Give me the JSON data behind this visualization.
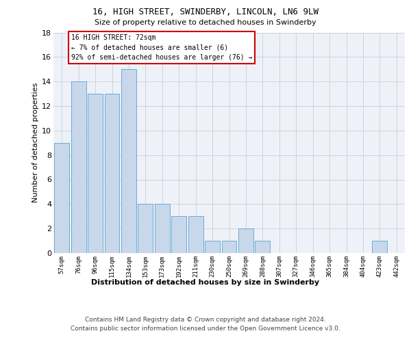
{
  "title1": "16, HIGH STREET, SWINDERBY, LINCOLN, LN6 9LW",
  "title2": "Size of property relative to detached houses in Swinderby",
  "xlabel": "Distribution of detached houses by size in Swinderby",
  "ylabel": "Number of detached properties",
  "categories": [
    "57sqm",
    "76sqm",
    "96sqm",
    "115sqm",
    "134sqm",
    "153sqm",
    "173sqm",
    "192sqm",
    "211sqm",
    "230sqm",
    "250sqm",
    "269sqm",
    "288sqm",
    "307sqm",
    "327sqm",
    "346sqm",
    "365sqm",
    "384sqm",
    "404sqm",
    "423sqm",
    "442sqm"
  ],
  "values": [
    9,
    14,
    13,
    13,
    15,
    4,
    4,
    3,
    3,
    1,
    1,
    2,
    1,
    0,
    0,
    0,
    0,
    0,
    0,
    1,
    0
  ],
  "bar_color": "#c8d8ea",
  "bar_edge_color": "#6aaad5",
  "ylim": [
    0,
    18
  ],
  "yticks": [
    0,
    2,
    4,
    6,
    8,
    10,
    12,
    14,
    16,
    18
  ],
  "annotation_line1": "16 HIGH STREET: 72sqm",
  "annotation_line2": "← 7% of detached houses are smaller (6)",
  "annotation_line3": "92% of semi-detached houses are larger (76) →",
  "annotation_box_facecolor": "#ffffff",
  "annotation_box_edgecolor": "#cc0000",
  "footer1": "Contains HM Land Registry data © Crown copyright and database right 2024.",
  "footer2": "Contains public sector information licensed under the Open Government Licence v3.0.",
  "bg_color": "#eef2f8",
  "grid_color": "#c8cfd8"
}
